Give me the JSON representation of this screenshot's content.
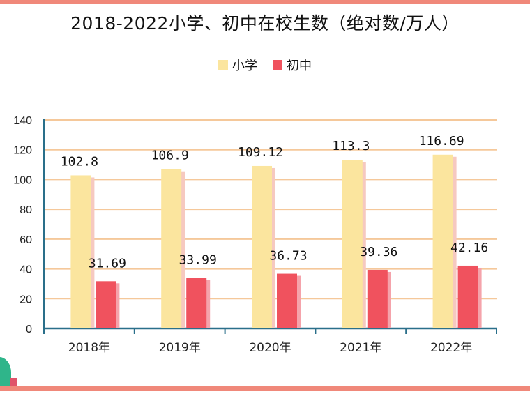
{
  "chart_data": {
    "type": "bar",
    "title": "2018-2022小学、初中在校生数（绝对数/万人）",
    "categories": [
      "2018年",
      "2019年",
      "2020年",
      "2021年",
      "2022年"
    ],
    "series": [
      {
        "name": "小学",
        "values": [
          102.8,
          106.9,
          109.12,
          113.3,
          116.69
        ],
        "labels": [
          "102.8",
          "106.9",
          "109.12",
          "113.3",
          "116.69"
        ]
      },
      {
        "name": "初中",
        "values": [
          31.69,
          33.99,
          36.73,
          39.36,
          42.16
        ],
        "labels": [
          "31.69",
          "33.99",
          "36.73",
          "39.36",
          "42.16"
        ]
      }
    ],
    "ylim": [
      0,
      140
    ],
    "yticks": [
      "0",
      "20",
      "40",
      "60",
      "80",
      "100",
      "120",
      "140"
    ],
    "ytick_values": [
      0,
      20,
      40,
      60,
      80,
      100,
      120,
      140
    ],
    "grid": true,
    "legend_position": "top-center",
    "colors": {
      "小学": "#fbe59e",
      "初中": "#f0525e",
      "grid": "#f5c89a",
      "axis": "#2a6f8a"
    }
  }
}
